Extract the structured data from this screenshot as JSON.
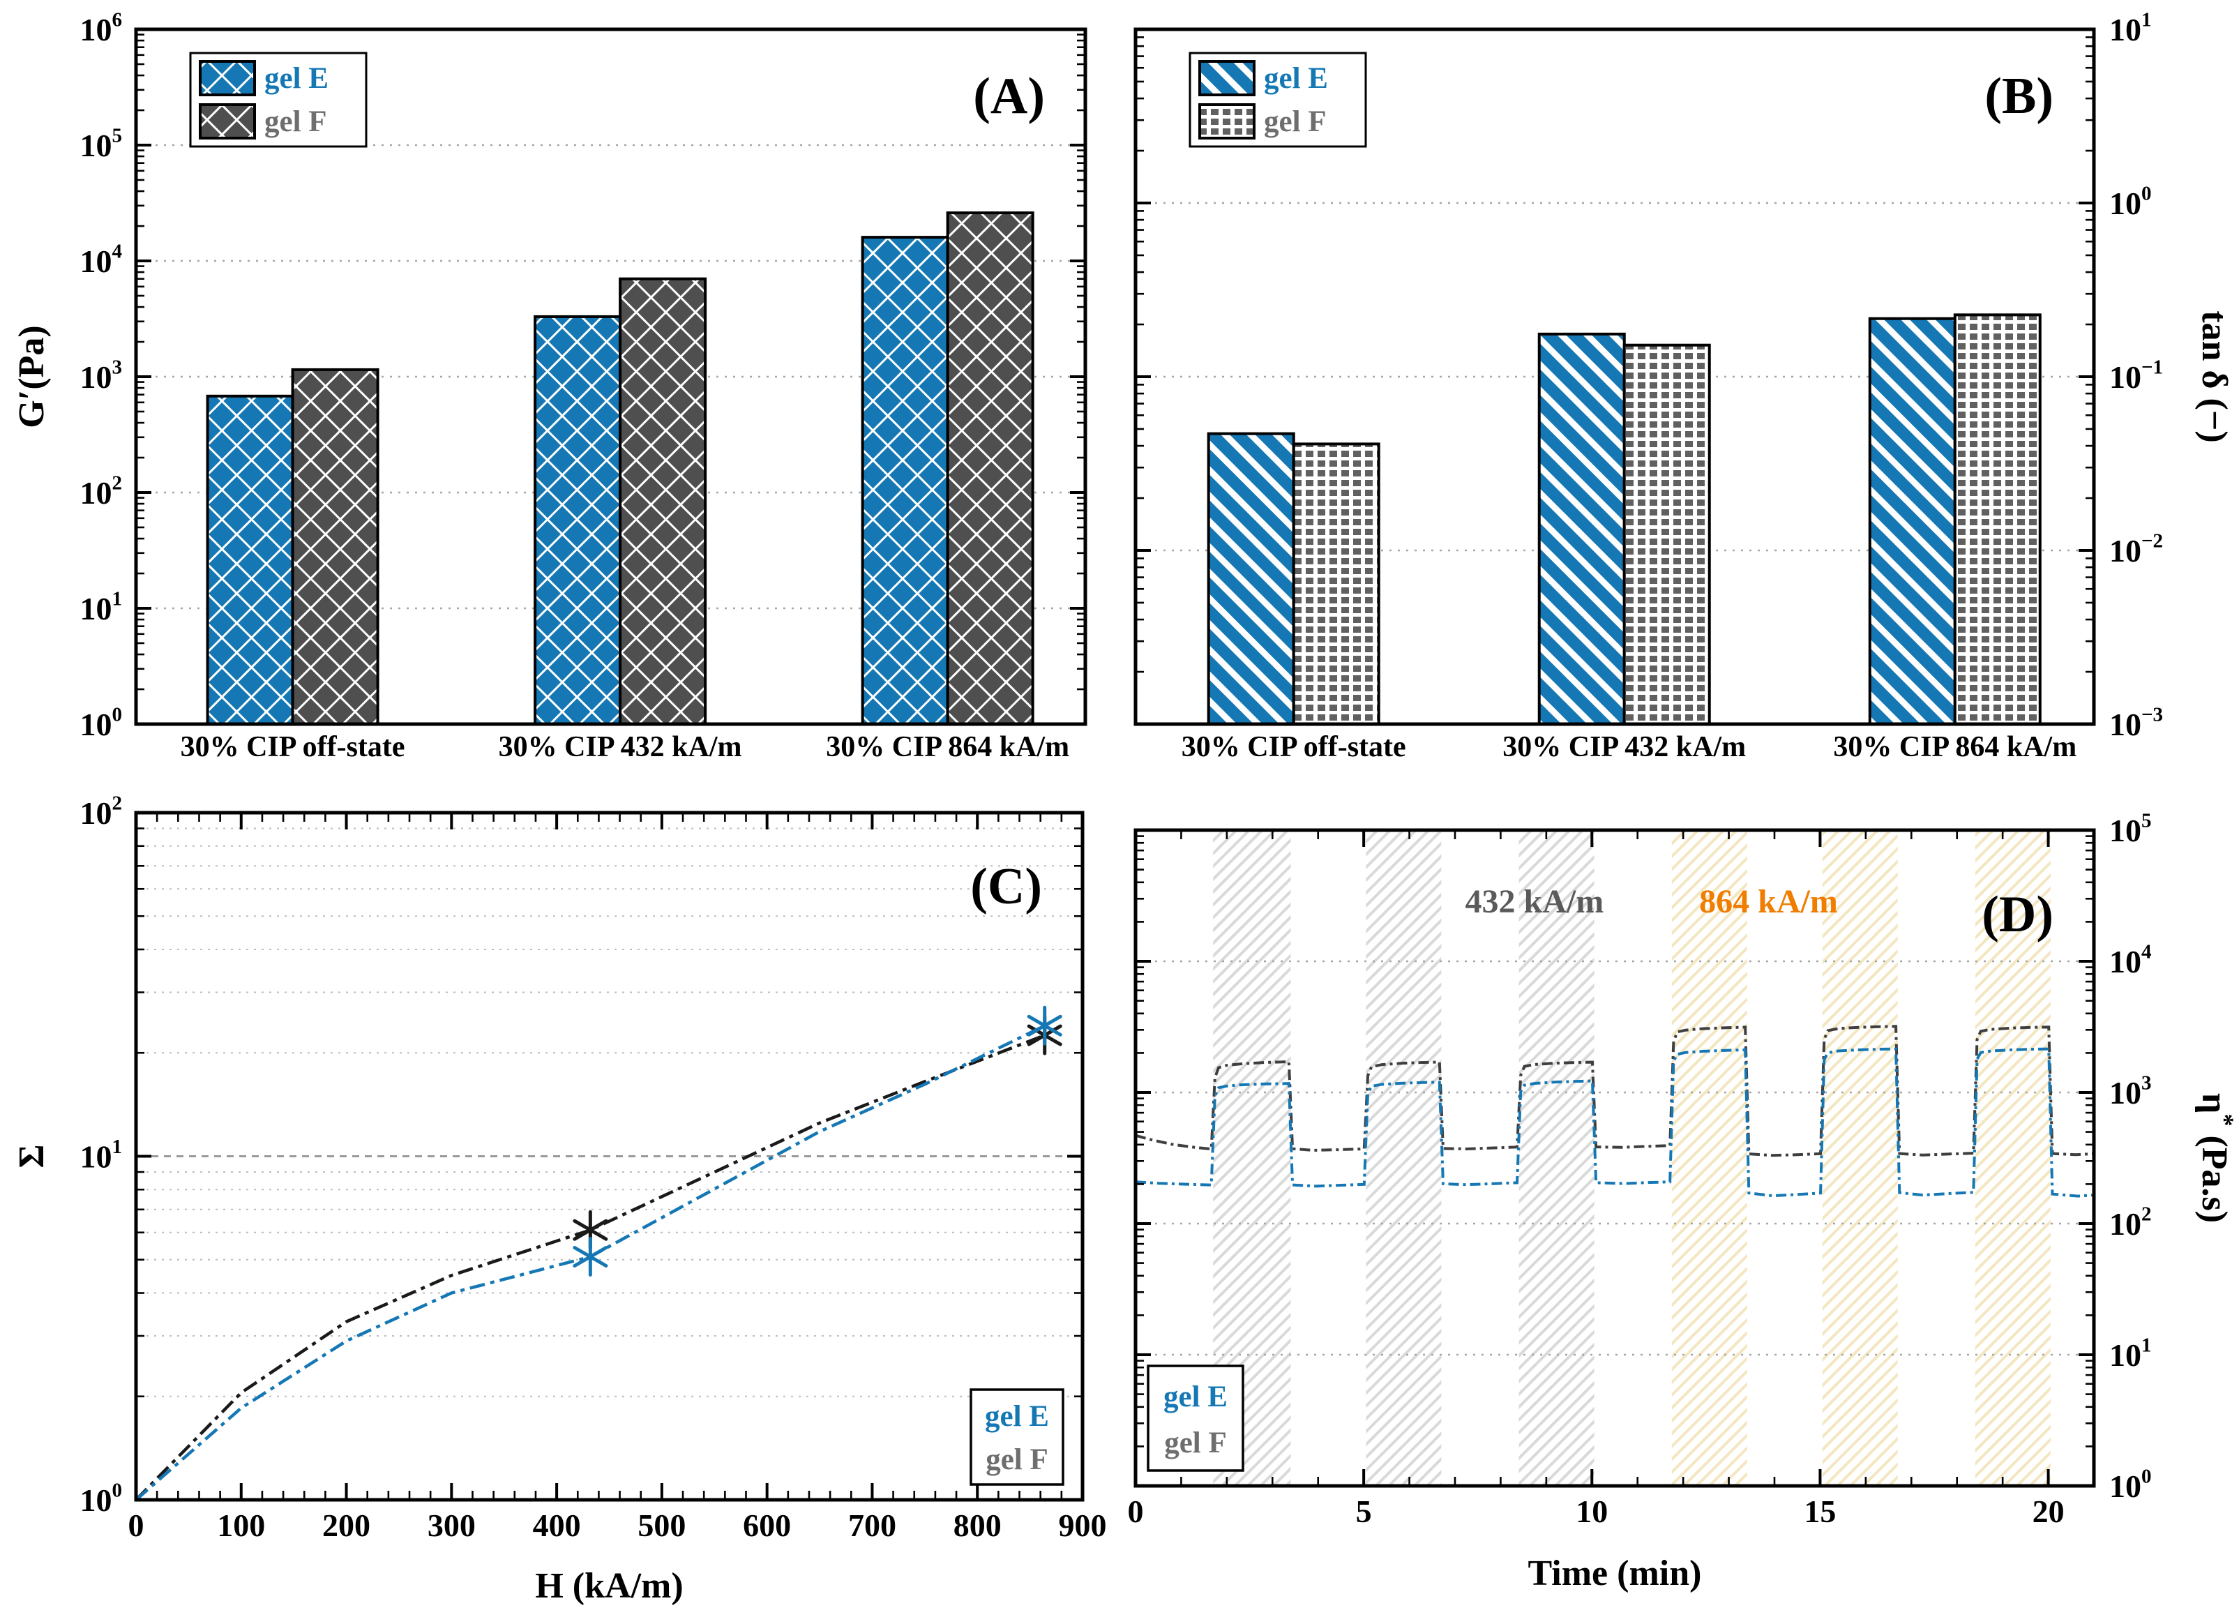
{
  "figure": {
    "background": "#ffffff",
    "panel_letters": [
      "(A)",
      "(B)",
      "(C)",
      "(D)"
    ]
  },
  "colors": {
    "gelE_blue": "#1578b4",
    "gelF_dark": "#4f4f4f",
    "gelF_grid": "#606060",
    "gelF_text": "#6e6e6e",
    "gelF_curve": "#3f3f3f",
    "black": "#000000",
    "grid_dotted": "#a6a6a6",
    "band_432": "#d9d9d9",
    "band_864": "#f3e6c0",
    "annotation_432": "#5a5a5a",
    "annotation_864": "#f07d00"
  },
  "chart_data": [
    {
      "id": "A",
      "letter": "(A)",
      "type": "bar",
      "ylabel_parts": [
        [
          "G′(Pa)",
          false
        ]
      ],
      "y_side": "left",
      "ylog": true,
      "ylim": [
        1,
        1000000
      ],
      "y_tick_exponents": [
        0,
        1,
        2,
        3,
        4,
        5,
        6
      ],
      "grid_decades": [
        10,
        100,
        1000,
        10000,
        100000
      ],
      "categories": [
        "30% CIP off-state",
        "30% CIP 432 kA/m",
        "30% CIP 864 kA/m"
      ],
      "series": [
        {
          "name": "gel E",
          "pattern": "diamondE",
          "values": [
            680,
            3300,
            16000
          ]
        },
        {
          "name": "gel F",
          "pattern": "diamondF",
          "values": [
            1150,
            7000,
            26000
          ]
        }
      ],
      "legend": {
        "position": "top-left",
        "swatches": true,
        "labels": [
          {
            "text": "gel E",
            "color": "#1578b4"
          },
          {
            "text": "gel F",
            "color": "#6e6e6e"
          }
        ]
      }
    },
    {
      "id": "B",
      "letter": "(B)",
      "type": "bar",
      "ylabel_parts": [
        [
          "tan δ (−)",
          false
        ]
      ],
      "y_side": "right",
      "ylog": true,
      "ylim": [
        0.001,
        10
      ],
      "y_tick_exponents": [
        1,
        0,
        -1,
        -2,
        -3
      ],
      "grid_decades": [
        1,
        0.1,
        0.01
      ],
      "categories": [
        "30% CIP off-state",
        "30% CIP 432 kA/m",
        "30% CIP 864 kA/m"
      ],
      "series": [
        {
          "name": "gel E",
          "pattern": "stripeE",
          "values": [
            0.047,
            0.176,
            0.216
          ]
        },
        {
          "name": "gel F",
          "pattern": "gridF",
          "values": [
            0.041,
            0.152,
            0.227
          ]
        }
      ],
      "legend": {
        "position": "top-left",
        "swatches": true,
        "labels": [
          {
            "text": "gel E",
            "color": "#1578b4"
          },
          {
            "text": "gel F",
            "color": "#6e6e6e"
          }
        ]
      }
    },
    {
      "id": "C",
      "letter": "(C)",
      "type": "line",
      "xlabel": "H (kA/m)",
      "xlim": [
        0,
        900
      ],
      "x_major_step": 100,
      "x_minor_step": 20,
      "ylabel_parts": [
        [
          "Σ",
          false
        ]
      ],
      "y_side": "left",
      "ylog": true,
      "ylim": [
        1,
        100
      ],
      "y_tick_exponents": [
        0,
        1,
        2
      ],
      "minor_gridlines": true,
      "major_gridline_values": [
        10
      ],
      "series": [
        {
          "name": "gel F",
          "color": "#1a1a1a",
          "x": [
            0,
            100,
            200,
            300,
            432,
            650,
            750,
            864
          ],
          "y": [
            1,
            2.05,
            3.3,
            4.5,
            6.1,
            12.5,
            16.5,
            22.5
          ],
          "markers_at": [
            432,
            864
          ]
        },
        {
          "name": "gel E",
          "color": "#1578b4",
          "x": [
            0,
            100,
            200,
            300,
            432,
            650,
            750,
            864
          ],
          "y": [
            1,
            1.85,
            2.9,
            4.0,
            5.1,
            11.8,
            16.2,
            24
          ],
          "markers_at": [
            432,
            864
          ]
        }
      ],
      "legend": {
        "position": "bottom-right",
        "swatches": false,
        "labels": [
          {
            "text": "gel E",
            "color": "#1578b4"
          },
          {
            "text": "gel F",
            "color": "#6e6e6e"
          }
        ]
      }
    },
    {
      "id": "D",
      "letter": "(D)",
      "type": "line",
      "xlabel": "Time (min)",
      "xlim": [
        0,
        21
      ],
      "x_major_step": 5,
      "x_minor_step": 1,
      "ylabel_parts": [
        [
          "η",
          false
        ],
        [
          "*",
          true
        ],
        [
          " (Pa.s)",
          false
        ]
      ],
      "y_side": "right",
      "ylog": true,
      "ylim": [
        1,
        100000
      ],
      "y_tick_exponents": [
        5,
        4,
        3,
        2,
        1,
        0
      ],
      "grid_decades": [
        10,
        100,
        1000,
        10000
      ],
      "bands": {
        "on_432": [
          [
            1.7,
            3.4
          ],
          [
            5.05,
            6.7
          ],
          [
            8.4,
            10.05
          ]
        ],
        "on_864": [
          [
            11.75,
            13.4
          ],
          [
            15.05,
            16.7
          ],
          [
            18.4,
            20.05
          ]
        ],
        "color_432": "#d9d9d9",
        "color_864": "#f3e6c0"
      },
      "annotations": [
        {
          "text": "432 kA/m",
          "color": "#5a5a5a",
          "x": 8.74
        },
        {
          "text": "864 kA/m",
          "color": "#f07d00",
          "x": 13.87
        }
      ],
      "series": [
        {
          "name": "gel F",
          "color": "#3f3f3f",
          "points": [
            [
              0,
              470
            ],
            [
              0.35,
              435
            ],
            [
              0.8,
              402
            ],
            [
              1.25,
              383
            ],
            [
              1.66,
              370
            ],
            [
              1.74,
              1300
            ],
            [
              1.82,
              1545
            ],
            [
              2.0,
              1610
            ],
            [
              2.35,
              1655
            ],
            [
              2.8,
              1690
            ],
            [
              3.36,
              1715
            ],
            [
              3.44,
              372
            ],
            [
              3.9,
              362
            ],
            [
              4.45,
              366
            ],
            [
              5.01,
              371
            ],
            [
              5.09,
              1340
            ],
            [
              5.17,
              1570
            ],
            [
              5.4,
              1630
            ],
            [
              5.85,
              1670
            ],
            [
              6.3,
              1692
            ],
            [
              6.66,
              1705
            ],
            [
              6.74,
              374
            ],
            [
              7.25,
              371
            ],
            [
              7.8,
              377
            ],
            [
              8.36,
              383
            ],
            [
              8.44,
              1350
            ],
            [
              8.52,
              1580
            ],
            [
              8.75,
              1635
            ],
            [
              9.2,
              1672
            ],
            [
              9.65,
              1692
            ],
            [
              10.01,
              1702
            ],
            [
              10.09,
              384
            ],
            [
              10.65,
              381
            ],
            [
              11.2,
              388
            ],
            [
              11.71,
              393
            ],
            [
              11.79,
              2450
            ],
            [
              11.87,
              2890
            ],
            [
              12.05,
              2985
            ],
            [
              12.45,
              3065
            ],
            [
              12.95,
              3115
            ],
            [
              13.36,
              3145
            ],
            [
              13.44,
              340
            ],
            [
              13.95,
              331
            ],
            [
              14.5,
              335
            ],
            [
              15.01,
              341
            ],
            [
              15.09,
              2550
            ],
            [
              15.17,
              2960
            ],
            [
              15.4,
              3070
            ],
            [
              15.85,
              3135
            ],
            [
              16.3,
              3172
            ],
            [
              16.66,
              3188
            ],
            [
              16.74,
              342
            ],
            [
              17.25,
              333
            ],
            [
              17.8,
              339
            ],
            [
              18.36,
              344
            ],
            [
              18.44,
              2530
            ],
            [
              18.52,
              2930
            ],
            [
              18.75,
              3030
            ],
            [
              19.2,
              3095
            ],
            [
              19.65,
              3135
            ],
            [
              20.01,
              3150
            ],
            [
              20.09,
              342
            ],
            [
              20.6,
              335
            ],
            [
              21,
              341
            ]
          ]
        },
        {
          "name": "gel E",
          "color": "#1578b4",
          "points": [
            [
              0,
              208
            ],
            [
              0.5,
              203
            ],
            [
              1.0,
              200
            ],
            [
              1.66,
              197
            ],
            [
              1.74,
              940
            ],
            [
              1.82,
              1085
            ],
            [
              2.0,
              1120
            ],
            [
              2.35,
              1145
            ],
            [
              2.8,
              1160
            ],
            [
              3.36,
              1170
            ],
            [
              3.44,
              197
            ],
            [
              3.95,
              193
            ],
            [
              4.5,
              196
            ],
            [
              5.01,
              199
            ],
            [
              5.09,
              985
            ],
            [
              5.17,
              1115
            ],
            [
              5.4,
              1152
            ],
            [
              5.85,
              1176
            ],
            [
              6.3,
              1190
            ],
            [
              6.66,
              1198
            ],
            [
              6.74,
              201
            ],
            [
              7.25,
              198
            ],
            [
              7.9,
              202
            ],
            [
              8.36,
              205
            ],
            [
              8.44,
              1015
            ],
            [
              8.52,
              1135
            ],
            [
              8.75,
              1172
            ],
            [
              9.2,
              1200
            ],
            [
              9.65,
              1215
            ],
            [
              10.01,
              1223
            ],
            [
              10.09,
              205
            ],
            [
              10.7,
              202
            ],
            [
              11.3,
              206
            ],
            [
              11.71,
              208
            ],
            [
              11.79,
              1735
            ],
            [
              11.87,
              1955
            ],
            [
              12.05,
              2015
            ],
            [
              12.45,
              2062
            ],
            [
              12.95,
              2092
            ],
            [
              13.36,
              2112
            ],
            [
              13.44,
              171
            ],
            [
              13.95,
              163
            ],
            [
              14.55,
              167
            ],
            [
              15.01,
              171
            ],
            [
              15.09,
              1780
            ],
            [
              15.17,
              2005
            ],
            [
              15.4,
              2072
            ],
            [
              15.85,
              2112
            ],
            [
              16.3,
              2136
            ],
            [
              16.66,
              2146
            ],
            [
              16.74,
              172
            ],
            [
              17.25,
              165
            ],
            [
              17.9,
              170
            ],
            [
              18.36,
              173
            ],
            [
              18.44,
              1790
            ],
            [
              18.52,
              2015
            ],
            [
              18.75,
              2072
            ],
            [
              19.2,
              2112
            ],
            [
              19.65,
              2136
            ],
            [
              20.01,
              2146
            ],
            [
              20.09,
              168
            ],
            [
              20.65,
              162
            ],
            [
              21,
              165
            ]
          ]
        }
      ],
      "legend": {
        "position": "bottom-left",
        "swatches": false,
        "labels": [
          {
            "text": "gel E",
            "color": "#1578b4"
          },
          {
            "text": "gel F",
            "color": "#6e6e6e"
          }
        ]
      }
    }
  ]
}
